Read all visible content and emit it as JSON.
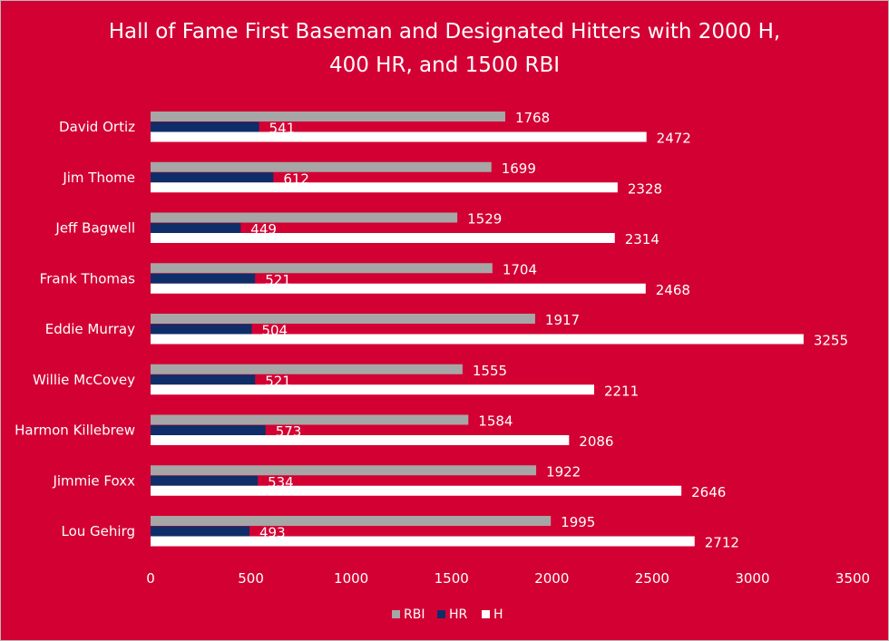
{
  "chart_data": {
    "type": "bar",
    "orientation": "horizontal",
    "title": "Hall of Fame First Baseman and Designated Hitters with 2000 H,",
    "subtitle": "400 HR, and 1500 RBI",
    "categories": [
      "David Ortiz",
      "Jim Thome",
      "Jeff Bagwell",
      "Frank Thomas",
      "Eddie Murray",
      "Willie McCovey",
      "Harmon Killebrew",
      "Jimmie Foxx",
      "Lou Gehirg"
    ],
    "series": [
      {
        "name": "RBI",
        "color": "#a6a6a6",
        "values": [
          1768,
          1699,
          1529,
          1704,
          1917,
          1555,
          1584,
          1922,
          1995
        ]
      },
      {
        "name": "HR",
        "color": "#0f2d69",
        "values": [
          541,
          612,
          449,
          521,
          504,
          521,
          573,
          534,
          493
        ]
      },
      {
        "name": "H",
        "color": "#ffffff",
        "values": [
          2472,
          2328,
          2314,
          2468,
          3255,
          2211,
          2086,
          2646,
          2712
        ]
      }
    ],
    "xlim": [
      0,
      3500
    ],
    "xticks": [
      "0",
      "500",
      "1000",
      "1500",
      "2000",
      "2500",
      "3000",
      "3500"
    ],
    "grid": false,
    "legend": "bottom",
    "data_labels": true,
    "colors": {
      "background": "#d30033",
      "text": "#ffffff"
    }
  }
}
